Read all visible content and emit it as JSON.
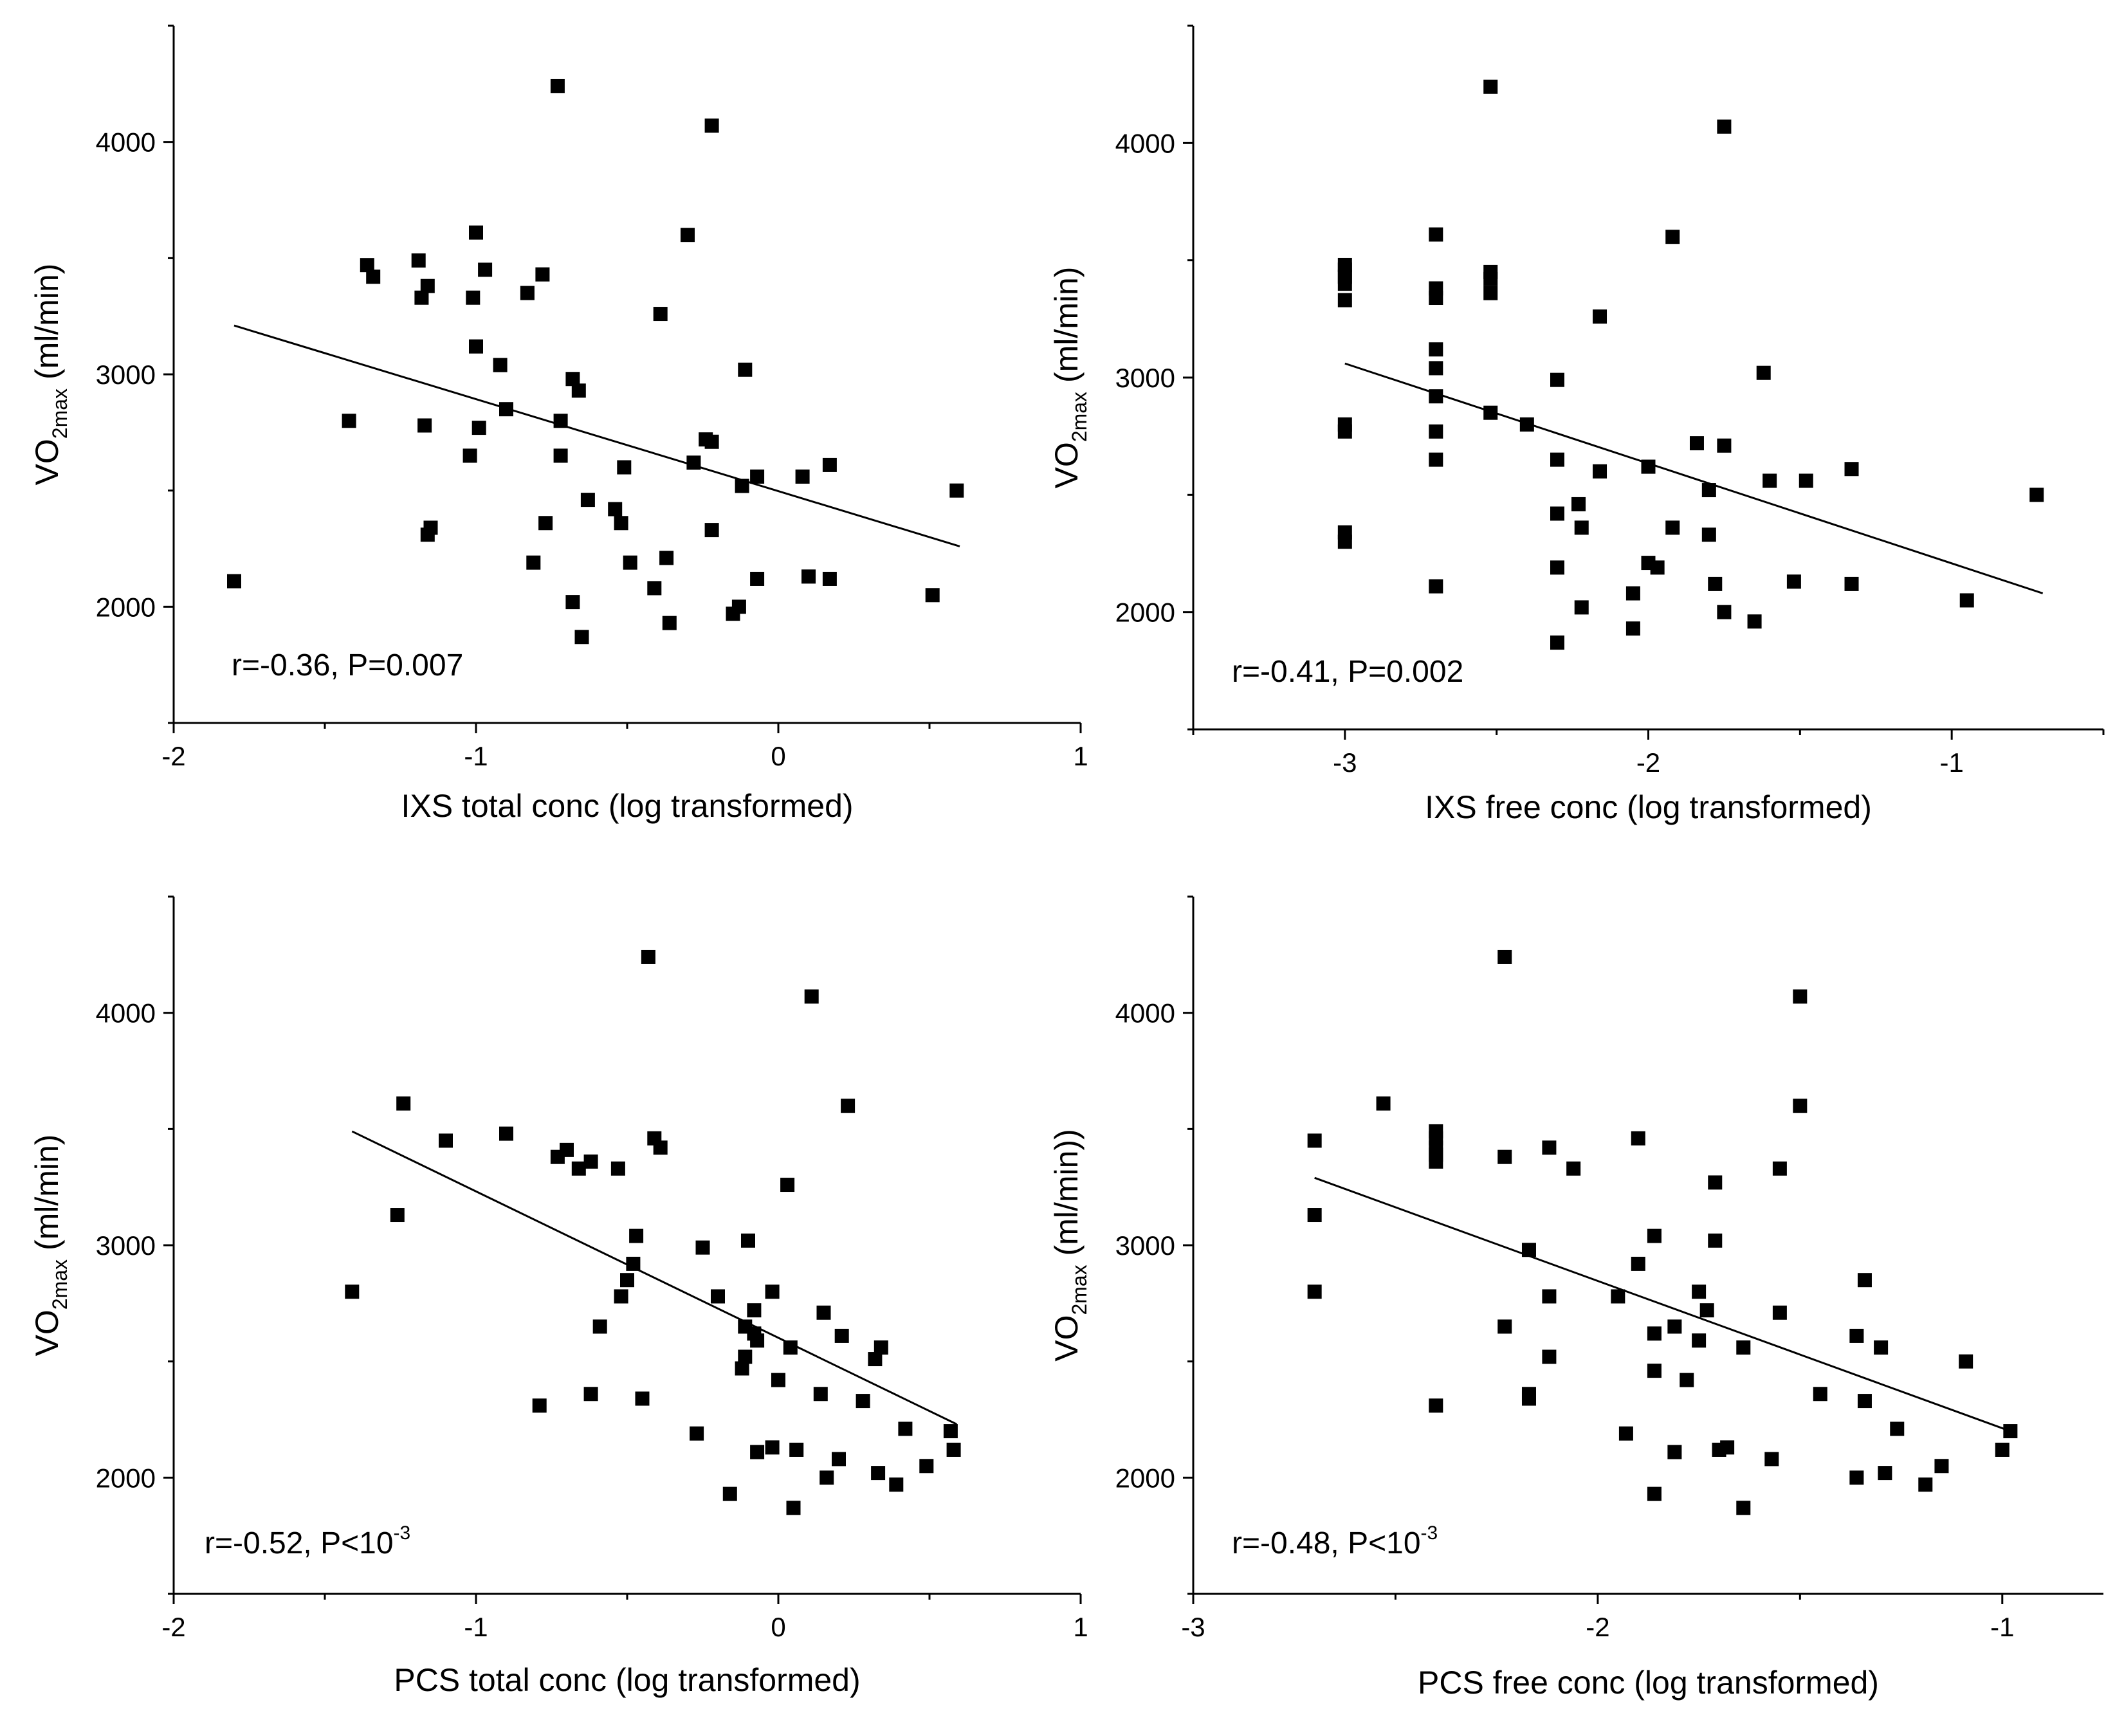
{
  "chart_data": [
    {
      "type": "scatter",
      "panel": "top-left",
      "xlabel": "IXS total conc (log transformed)",
      "ylabel": {
        "main": "VO",
        "sub": "2max",
        "unit": " (ml/min)"
      },
      "xlim": [
        -2,
        1
      ],
      "ylim": [
        1500,
        4500
      ],
      "xticks": [
        -2,
        -1,
        0,
        1
      ],
      "yticks": [
        2000,
        3000,
        4000
      ],
      "stat": {
        "text": "r=-0.36, P=0.007",
        "sup": ""
      },
      "fit": {
        "x": [
          -1.8,
          0.6
        ],
        "y": [
          3210,
          2260
        ]
      },
      "points": [
        [
          -1.8,
          2110
        ],
        [
          -1.42,
          2800
        ],
        [
          -1.36,
          3470
        ],
        [
          -1.34,
          3420
        ],
        [
          -1.19,
          3490
        ],
        [
          -1.18,
          3330
        ],
        [
          -1.16,
          3380
        ],
        [
          -1.17,
          2780
        ],
        [
          -1.16,
          2310
        ],
        [
          -1.15,
          2340
        ],
        [
          -1.02,
          2650
        ],
        [
          -1.01,
          3330
        ],
        [
          -1.0,
          3610
        ],
        [
          -1.0,
          3120
        ],
        [
          -0.99,
          2770
        ],
        [
          -0.97,
          3450
        ],
        [
          -0.92,
          3040
        ],
        [
          -0.9,
          2850
        ],
        [
          -0.83,
          3350
        ],
        [
          -0.81,
          2190
        ],
        [
          -0.78,
          3430
        ],
        [
          -0.77,
          2360
        ],
        [
          -0.73,
          4240
        ],
        [
          -0.72,
          2800
        ],
        [
          -0.72,
          2650
        ],
        [
          -0.68,
          2020
        ],
        [
          -0.68,
          2980
        ],
        [
          -0.66,
          2930
        ],
        [
          -0.65,
          1870
        ],
        [
          -0.63,
          2460
        ],
        [
          -0.54,
          2420
        ],
        [
          -0.52,
          2360
        ],
        [
          -0.51,
          2600
        ],
        [
          -0.49,
          2190
        ],
        [
          -0.41,
          2080
        ],
        [
          -0.39,
          3260
        ],
        [
          -0.37,
          2210
        ],
        [
          -0.36,
          1930
        ],
        [
          -0.3,
          3600
        ],
        [
          -0.28,
          2620
        ],
        [
          -0.24,
          2720
        ],
        [
          -0.22,
          2330
        ],
        [
          -0.22,
          2710
        ],
        [
          -0.22,
          4070
        ],
        [
          -0.15,
          1970
        ],
        [
          -0.13,
          2000
        ],
        [
          -0.12,
          2520
        ],
        [
          -0.11,
          3020
        ],
        [
          -0.07,
          2560
        ],
        [
          -0.07,
          2120
        ],
        [
          0.08,
          2560
        ],
        [
          0.1,
          2130
        ],
        [
          0.17,
          2610
        ],
        [
          0.17,
          2120
        ],
        [
          0.51,
          2050
        ],
        [
          0.59,
          2500
        ]
      ]
    },
    {
      "type": "scatter",
      "panel": "top-right",
      "xlabel": "IXS free conc (log transformed)",
      "ylabel": {
        "main": "VO",
        "sub": "2max",
        "unit": " (ml/min)"
      },
      "xlim": [
        -3.5,
        -0.5
      ],
      "ylim": [
        1500,
        4500
      ],
      "xticks": [
        -3,
        -2,
        -1
      ],
      "yticks": [
        2000,
        3000,
        4000
      ],
      "stat": {
        "text": "r=-0.41, P=0.002",
        "sup": ""
      },
      "fit": {
        "x": [
          -3.0,
          -0.7
        ],
        "y": [
          3060,
          2080
        ]
      },
      "points": [
        [
          -3.0,
          3480
        ],
        [
          -3.0,
          3460
        ],
        [
          -3.0,
          3430
        ],
        [
          -3.0,
          3400
        ],
        [
          -3.0,
          3330
        ],
        [
          -3.0,
          2800
        ],
        [
          -3.0,
          2770
        ],
        [
          -3.0,
          2340
        ],
        [
          -3.0,
          2300
        ],
        [
          -2.7,
          3610
        ],
        [
          -2.7,
          3380
        ],
        [
          -2.7,
          3340
        ],
        [
          -2.7,
          3120
        ],
        [
          -2.7,
          3040
        ],
        [
          -2.7,
          2920
        ],
        [
          -2.7,
          2770
        ],
        [
          -2.7,
          2650
        ],
        [
          -2.7,
          2110
        ],
        [
          -2.52,
          4240
        ],
        [
          -2.52,
          3450
        ],
        [
          -2.52,
          3420
        ],
        [
          -2.52,
          3360
        ],
        [
          -2.52,
          2850
        ],
        [
          -2.4,
          2800
        ],
        [
          -2.3,
          2990
        ],
        [
          -2.3,
          2650
        ],
        [
          -2.3,
          2420
        ],
        [
          -2.3,
          2190
        ],
        [
          -2.3,
          1870
        ],
        [
          -2.23,
          2460
        ],
        [
          -2.22,
          2360
        ],
        [
          -2.22,
          2020
        ],
        [
          -2.16,
          3260
        ],
        [
          -2.16,
          2600
        ],
        [
          -2.05,
          2080
        ],
        [
          -2.05,
          1930
        ],
        [
          -2.0,
          2620
        ],
        [
          -2.0,
          2210
        ],
        [
          -1.97,
          2190
        ],
        [
          -1.92,
          3600
        ],
        [
          -1.92,
          2360
        ],
        [
          -1.84,
          2720
        ],
        [
          -1.8,
          2520
        ],
        [
          -1.8,
          2330
        ],
        [
          -1.78,
          2120
        ],
        [
          -1.75,
          4070
        ],
        [
          -1.75,
          2710
        ],
        [
          -1.75,
          2000
        ],
        [
          -1.65,
          1960
        ],
        [
          -1.62,
          3020
        ],
        [
          -1.6,
          2560
        ],
        [
          -1.52,
          2130
        ],
        [
          -1.48,
          2560
        ],
        [
          -1.33,
          2610
        ],
        [
          -1.33,
          2120
        ],
        [
          -0.95,
          2050
        ],
        [
          -0.72,
          2500
        ]
      ]
    },
    {
      "type": "scatter",
      "panel": "bottom-left",
      "xlabel": "PCS total conc (log transformed)",
      "ylabel": {
        "main": "VO",
        "sub": "2max",
        "unit": " (ml/min)"
      },
      "xlim": [
        -2,
        1
      ],
      "ylim": [
        1500,
        4500
      ],
      "xticks": [
        -2,
        -1,
        0,
        1
      ],
      "yticks": [
        2000,
        3000,
        4000
      ],
      "stat": {
        "text": "r=-0.52, P<10",
        "sup": "-3"
      },
      "fit": {
        "x": [
          -1.41,
          0.59
        ],
        "y": [
          3490,
          2230
        ]
      },
      "points": [
        [
          -1.41,
          2800
        ],
        [
          -1.26,
          3130
        ],
        [
          -1.24,
          3610
        ],
        [
          -1.1,
          3450
        ],
        [
          -0.9,
          3480
        ],
        [
          -0.79,
          2310
        ],
        [
          -0.73,
          3380
        ],
        [
          -0.7,
          3410
        ],
        [
          -0.66,
          3330
        ],
        [
          -0.62,
          3360
        ],
        [
          -0.62,
          2360
        ],
        [
          -0.59,
          2650
        ],
        [
          -0.53,
          3330
        ],
        [
          -0.52,
          2780
        ],
        [
          -0.5,
          2850
        ],
        [
          -0.48,
          2920
        ],
        [
          -0.47,
          3040
        ],
        [
          -0.45,
          2340
        ],
        [
          -0.43,
          4240
        ],
        [
          -0.41,
          3460
        ],
        [
          -0.39,
          3420
        ],
        [
          -0.27,
          2190
        ],
        [
          -0.25,
          2990
        ],
        [
          -0.2,
          2780
        ],
        [
          -0.16,
          1930
        ],
        [
          -0.12,
          2470
        ],
        [
          -0.11,
          2520
        ],
        [
          -0.11,
          2650
        ],
        [
          -0.1,
          3020
        ],
        [
          -0.08,
          2720
        ],
        [
          -0.08,
          2620
        ],
        [
          -0.07,
          2590
        ],
        [
          -0.07,
          2110
        ],
        [
          -0.02,
          2800
        ],
        [
          -0.02,
          2130
        ],
        [
          0.0,
          2420
        ],
        [
          0.03,
          3260
        ],
        [
          0.04,
          2560
        ],
        [
          0.05,
          1870
        ],
        [
          0.06,
          2120
        ],
        [
          0.11,
          4070
        ],
        [
          0.14,
          2360
        ],
        [
          0.15,
          2710
        ],
        [
          0.16,
          2000
        ],
        [
          0.2,
          2080
        ],
        [
          0.21,
          2610
        ],
        [
          0.23,
          3600
        ],
        [
          0.28,
          2330
        ],
        [
          0.32,
          2510
        ],
        [
          0.33,
          2020
        ],
        [
          0.34,
          2560
        ],
        [
          0.39,
          1970
        ],
        [
          0.42,
          2210
        ],
        [
          0.49,
          2050
        ],
        [
          0.57,
          2200
        ],
        [
          0.58,
          2120
        ]
      ]
    },
    {
      "type": "scatter",
      "panel": "bottom-right",
      "xlabel": "PCS free conc (log transformed)",
      "ylabel": {
        "main": "VO",
        "sub": "2max",
        "unit": " (ml/min))"
      },
      "xlim": [
        -3,
        -0.75
      ],
      "ylim": [
        1500,
        4500
      ],
      "xticks": [
        -3,
        -2,
        -1
      ],
      "yticks": [
        2000,
        3000,
        4000
      ],
      "stat": {
        "text": "r=-0.48, P<10",
        "sup": "-3"
      },
      "fit": {
        "x": [
          -2.7,
          -0.98
        ],
        "y": [
          3290,
          2200
        ]
      },
      "points": [
        [
          -2.7,
          3450
        ],
        [
          -2.7,
          3130
        ],
        [
          -2.7,
          2800
        ],
        [
          -2.53,
          3610
        ],
        [
          -2.4,
          3490
        ],
        [
          -2.4,
          3460
        ],
        [
          -2.4,
          3420
        ],
        [
          -2.4,
          3390
        ],
        [
          -2.4,
          3360
        ],
        [
          -2.4,
          2310
        ],
        [
          -2.23,
          4240
        ],
        [
          -2.23,
          3380
        ],
        [
          -2.23,
          2650
        ],
        [
          -2.17,
          2980
        ],
        [
          -2.17,
          2360
        ],
        [
          -2.17,
          2340
        ],
        [
          -2.12,
          3420
        ],
        [
          -2.12,
          2780
        ],
        [
          -2.12,
          2520
        ],
        [
          -2.06,
          3330
        ],
        [
          -1.95,
          2780
        ],
        [
          -1.93,
          2190
        ],
        [
          -1.9,
          3460
        ],
        [
          -1.9,
          2920
        ],
        [
          -1.86,
          3040
        ],
        [
          -1.86,
          2620
        ],
        [
          -1.86,
          2460
        ],
        [
          -1.86,
          1930
        ],
        [
          -1.81,
          2650
        ],
        [
          -1.81,
          2110
        ],
        [
          -1.78,
          2420
        ],
        [
          -1.75,
          2800
        ],
        [
          -1.75,
          2590
        ],
        [
          -1.73,
          2720
        ],
        [
          -1.71,
          3270
        ],
        [
          -1.71,
          3020
        ],
        [
          -1.7,
          2120
        ],
        [
          -1.68,
          2130
        ],
        [
          -1.64,
          2560
        ],
        [
          -1.64,
          1870
        ],
        [
          -1.57,
          2080
        ],
        [
          -1.55,
          3330
        ],
        [
          -1.55,
          2710
        ],
        [
          -1.5,
          4070
        ],
        [
          -1.5,
          3600
        ],
        [
          -1.45,
          2360
        ],
        [
          -1.36,
          2610
        ],
        [
          -1.36,
          2000
        ],
        [
          -1.34,
          2850
        ],
        [
          -1.34,
          2330
        ],
        [
          -1.3,
          2560
        ],
        [
          -1.29,
          2020
        ],
        [
          -1.26,
          2210
        ],
        [
          -1.19,
          1970
        ],
        [
          -1.15,
          2050
        ],
        [
          -1.09,
          2500
        ],
        [
          -1.0,
          2120
        ],
        [
          -0.98,
          2200
        ]
      ]
    }
  ]
}
